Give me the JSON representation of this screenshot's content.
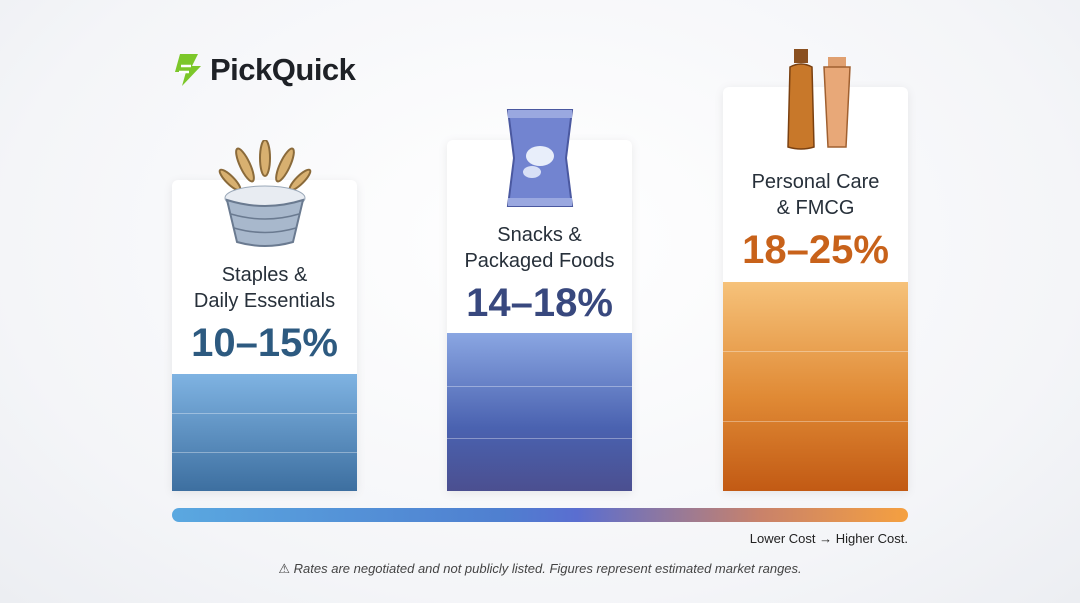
{
  "brand": {
    "name": "PickQuick",
    "logo_color": "#7cc72a",
    "icon": "bolt-logo-icon"
  },
  "cards": [
    {
      "label_line1": "Staples &",
      "label_line2": "Daily Essentials",
      "range": "10–15%",
      "color": "#2d5a80",
      "icon": "wheat-basket-icon"
    },
    {
      "label_line1": "Snacks &",
      "label_line2": "Packaged Foods",
      "range": "14–18%",
      "color": "#38487e",
      "icon": "snack-bag-icon"
    },
    {
      "label_line1": "Personal Care",
      "label_line2": "& FMCG",
      "range": "18–25%",
      "color": "#c8621a",
      "icon": "cosmetic-bottles-icon"
    }
  ],
  "scale": {
    "legend": "Lower Cost → Higher Cost."
  },
  "footnote": {
    "icon": "warning-icon",
    "text": "Rates are negotiated and not publicly listed. Figures represent estimated market ranges."
  },
  "chart_data": {
    "type": "bar",
    "categories": [
      "Staples & Daily Essentials",
      "Snacks & Packaged Foods",
      "Personal Care & FMCG"
    ],
    "ranges": [
      [
        10,
        15
      ],
      [
        14,
        18
      ],
      [
        18,
        25
      ]
    ],
    "unit": "%",
    "colors": [
      "#4a86bf",
      "#4f67b8",
      "#e08a35"
    ],
    "legend": "Lower Cost → Higher Cost."
  }
}
